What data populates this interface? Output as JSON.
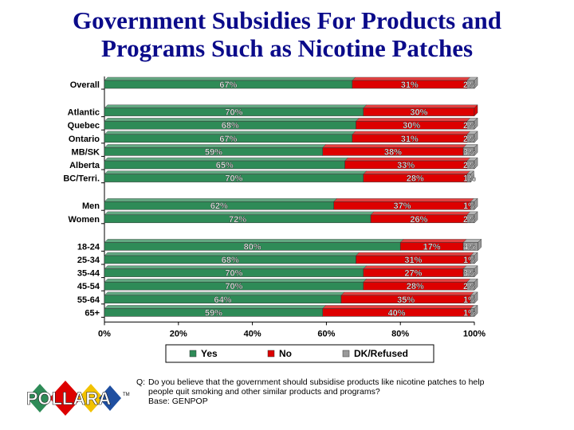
{
  "title": {
    "line1": "Government Subsidies For Products and",
    "line2": "Programs Such as Nicotine Patches"
  },
  "chart_data": {
    "type": "bar",
    "orientation": "horizontal",
    "stacked": true,
    "categories": [
      "Overall",
      "Atlantic",
      "Quebec",
      "Ontario",
      "MB/SK",
      "Alberta",
      "BC/Terri.",
      "Men",
      "Women",
      "18-24",
      "25-34",
      "35-44",
      "45-54",
      "55-64",
      "65+"
    ],
    "group_breaks_after": [
      "Overall",
      "BC/Terri.",
      "Women"
    ],
    "series": [
      {
        "name": "Yes",
        "color": "#2e8b57",
        "values": [
          67,
          70,
          68,
          67,
          59,
          65,
          70,
          62,
          72,
          80,
          68,
          70,
          70,
          64,
          59
        ]
      },
      {
        "name": "No",
        "color": "#dd0000",
        "values": [
          31,
          30,
          30,
          31,
          38,
          33,
          28,
          37,
          26,
          17,
          31,
          27,
          28,
          35,
          40
        ]
      },
      {
        "name": "DK/Refused",
        "color": "#9a9a9a",
        "values": [
          2,
          0,
          2,
          2,
          3,
          2,
          1,
          1,
          2,
          4,
          1,
          3,
          2,
          1,
          1
        ]
      }
    ],
    "labels": {
      "Yes": [
        "67%",
        "70%",
        "68%",
        "67%",
        "59%",
        "65%",
        "70%",
        "62%",
        "72%",
        "80%",
        "68%",
        "70%",
        "70%",
        "64%",
        "59%"
      ],
      "No": [
        "31%",
        "30%",
        "30%",
        "31%",
        "38%",
        "33%",
        "28%",
        "37%",
        "26%",
        "17%",
        "31%",
        "27%",
        "28%",
        "35%",
        "40%"
      ],
      "DK/Refused": [
        "2%",
        "",
        "2%",
        "2%",
        "3%",
        "2%",
        "1%",
        "1%",
        "2%",
        "4%",
        "1%",
        "3%",
        "2%",
        "1%",
        "1%"
      ]
    },
    "xticks": [
      "0%",
      "20%",
      "40%",
      "60%",
      "80%",
      "100%"
    ],
    "xlim": [
      0,
      100
    ],
    "legend_position": "bottom"
  },
  "question": {
    "label": "Q:",
    "text": "Do you believe that the government should subsidise products like nicotine patches to help people quit smoking and other similar products and programs?",
    "base": "Base: GENPOP"
  },
  "logo": {
    "text": "POLLARA",
    "tm": "TM",
    "colors": [
      "#2e8b57",
      "#dd0000",
      "#f2c200",
      "#1f4fa0"
    ]
  }
}
